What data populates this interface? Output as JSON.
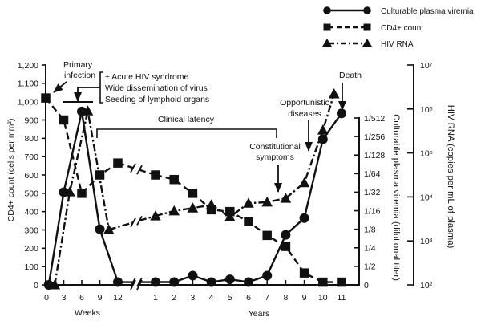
{
  "chart_data": {
    "type": "line",
    "title": "",
    "grid": false,
    "legend": {
      "position": "top-right",
      "entries": [
        {
          "label": "Culturable plasma viremia",
          "marker": "circle",
          "line_style": "solid"
        },
        {
          "label": "CD4+ count",
          "marker": "square",
          "line_style": "dashed"
        },
        {
          "label": "HIV RNA",
          "marker": "triangle",
          "line_style": "dash-dot"
        }
      ]
    },
    "axes": {
      "x": {
        "broken": true,
        "segments": [
          {
            "id": "weeks",
            "label": "Weeks",
            "range": [
              0,
              12
            ],
            "ticks": [
              0,
              3,
              6,
              9,
              12
            ],
            "tick_labels": [
              "0",
              "3",
              "6",
              "9",
              "12"
            ]
          },
          {
            "id": "years",
            "label": "Years",
            "range": [
              1,
              11
            ],
            "ticks": [
              1,
              2,
              3,
              4,
              5,
              6,
              7,
              8,
              9,
              10,
              11
            ],
            "tick_labels": [
              "1",
              "2",
              "3",
              "4",
              "5",
              "6",
              "7",
              "8",
              "9",
              "10",
              "11"
            ]
          }
        ]
      },
      "left": {
        "label": "CD4+ count (cells per mm³)",
        "unit": "cells per mm³",
        "scale": "linear",
        "range": [
          0,
          1200
        ],
        "ticks": [
          0,
          100,
          200,
          300,
          400,
          500,
          600,
          700,
          800,
          900,
          1000,
          1100,
          1200
        ],
        "tick_labels": [
          "0",
          "100",
          "200",
          "300",
          "400",
          "500",
          "600",
          "700",
          "800",
          "900",
          "1,000",
          "1,100",
          "1,200"
        ]
      },
      "right_inner": {
        "label": "Culturable plasma viremia (dilutional titer)",
        "unit": "dilution step n (titer 1/2^n; 0 = none)",
        "scale": "log2 titer",
        "range": [
          0,
          9
        ],
        "ticks": [
          0,
          1,
          2,
          3,
          4,
          5,
          6,
          7,
          8,
          9
        ],
        "tick_labels": [
          "0",
          "1/2",
          "1/4",
          "1/8",
          "1/16",
          "1/32",
          "1/64",
          "1/128",
          "1/256",
          "1/512"
        ]
      },
      "right_outer": {
        "label": "HIV RNA (copies per mL of plasma)",
        "unit": "copies per mL",
        "scale": "log10",
        "range": [
          100,
          10000000
        ],
        "ticks": [
          100,
          1000,
          10000,
          100000,
          1000000,
          10000000
        ],
        "tick_labels": [
          "10²",
          "10³",
          "10⁴",
          "10⁵",
          "10⁶",
          "10⁷"
        ]
      }
    },
    "series": [
      {
        "id": "hiv-rna",
        "name": "HIV RNA",
        "axis": "right_outer",
        "marker": "triangle",
        "line_style": "dash-dot",
        "points": [
          {
            "seg": "weeks",
            "x": 1.5,
            "y": 100
          },
          {
            "seg": "weeks",
            "x": 4,
            "y": 13000
          },
          {
            "seg": "weeks",
            "x": 7,
            "y": 900000
          },
          {
            "seg": "weeks",
            "x": 10.5,
            "y": 1800
          },
          {
            "seg": "years",
            "x": 1,
            "y": 3700
          },
          {
            "seg": "years",
            "x": 2,
            "y": 4800
          },
          {
            "seg": "years",
            "x": 3,
            "y": 5600
          },
          {
            "seg": "years",
            "x": 4,
            "y": 6600
          },
          {
            "seg": "years",
            "x": 5,
            "y": 3500
          },
          {
            "seg": "years",
            "x": 6,
            "y": 7200
          },
          {
            "seg": "years",
            "x": 7,
            "y": 7600
          },
          {
            "seg": "years",
            "x": 8,
            "y": 9300
          },
          {
            "seg": "years",
            "x": 9,
            "y": 21000
          },
          {
            "seg": "years",
            "x": 10,
            "y": 330000
          },
          {
            "seg": "years",
            "x": 10.6,
            "y": 2200000
          }
        ]
      },
      {
        "id": "cd4",
        "name": "CD4+ count",
        "axis": "left",
        "marker": "square",
        "line_style": "dashed",
        "points": [
          {
            "seg": "weeks",
            "x": 0,
            "y": 1020
          },
          {
            "seg": "weeks",
            "x": 3,
            "y": 900
          },
          {
            "seg": "weeks",
            "x": 6,
            "y": 500
          },
          {
            "seg": "weeks",
            "x": 9,
            "y": 600
          },
          {
            "seg": "weeks",
            "x": 12,
            "y": 665
          },
          {
            "seg": "years",
            "x": 1,
            "y": 600
          },
          {
            "seg": "years",
            "x": 2,
            "y": 575
          },
          {
            "seg": "years",
            "x": 3,
            "y": 500
          },
          {
            "seg": "years",
            "x": 4,
            "y": 410
          },
          {
            "seg": "years",
            "x": 5,
            "y": 400
          },
          {
            "seg": "years",
            "x": 6,
            "y": 345
          },
          {
            "seg": "years",
            "x": 7,
            "y": 270
          },
          {
            "seg": "years",
            "x": 8,
            "y": 210
          },
          {
            "seg": "years",
            "x": 9,
            "y": 65
          },
          {
            "seg": "years",
            "x": 10,
            "y": 15
          },
          {
            "seg": "years",
            "x": 11,
            "y": 15
          }
        ]
      },
      {
        "id": "viremia",
        "name": "Culturable plasma viremia",
        "axis": "right_inner",
        "marker": "circle",
        "line_style": "solid",
        "points": [
          {
            "seg": "weeks",
            "x": 0.5,
            "y": 0
          },
          {
            "seg": "weeks",
            "x": 3,
            "y": 5
          },
          {
            "seg": "weeks",
            "x": 6,
            "y": 9.35
          },
          {
            "seg": "weeks",
            "x": 9,
            "y": 3
          },
          {
            "seg": "weeks",
            "x": 12,
            "y": 0.15
          },
          {
            "seg": "years",
            "x": 1,
            "y": 0.15
          },
          {
            "seg": "years",
            "x": 2,
            "y": 0.15
          },
          {
            "seg": "years",
            "x": 3,
            "y": 0.5
          },
          {
            "seg": "years",
            "x": 4,
            "y": 0.15
          },
          {
            "seg": "years",
            "x": 5,
            "y": 0.3
          },
          {
            "seg": "years",
            "x": 6,
            "y": 0.15
          },
          {
            "seg": "years",
            "x": 7,
            "y": 0.5
          },
          {
            "seg": "years",
            "x": 8,
            "y": 2.7
          },
          {
            "seg": "years",
            "x": 9,
            "y": 3.6
          },
          {
            "seg": "years",
            "x": 10,
            "y": 7.85
          },
          {
            "seg": "years",
            "x": 11,
            "y": 9.25
          }
        ]
      }
    ],
    "annotations": {
      "primary_infection": [
        "Primary",
        "infection"
      ],
      "acute_phase": [
        "± Acute HIV syndrome",
        "Wide dissemination of virus",
        "Seeding of lymphoid organs"
      ],
      "clinical_latency": "Clinical latency",
      "constitutional_symptoms": [
        "Constitutional",
        "symptoms"
      ],
      "opportunistic_diseases": [
        "Opportunistic",
        "diseases"
      ],
      "death": "Death"
    }
  }
}
